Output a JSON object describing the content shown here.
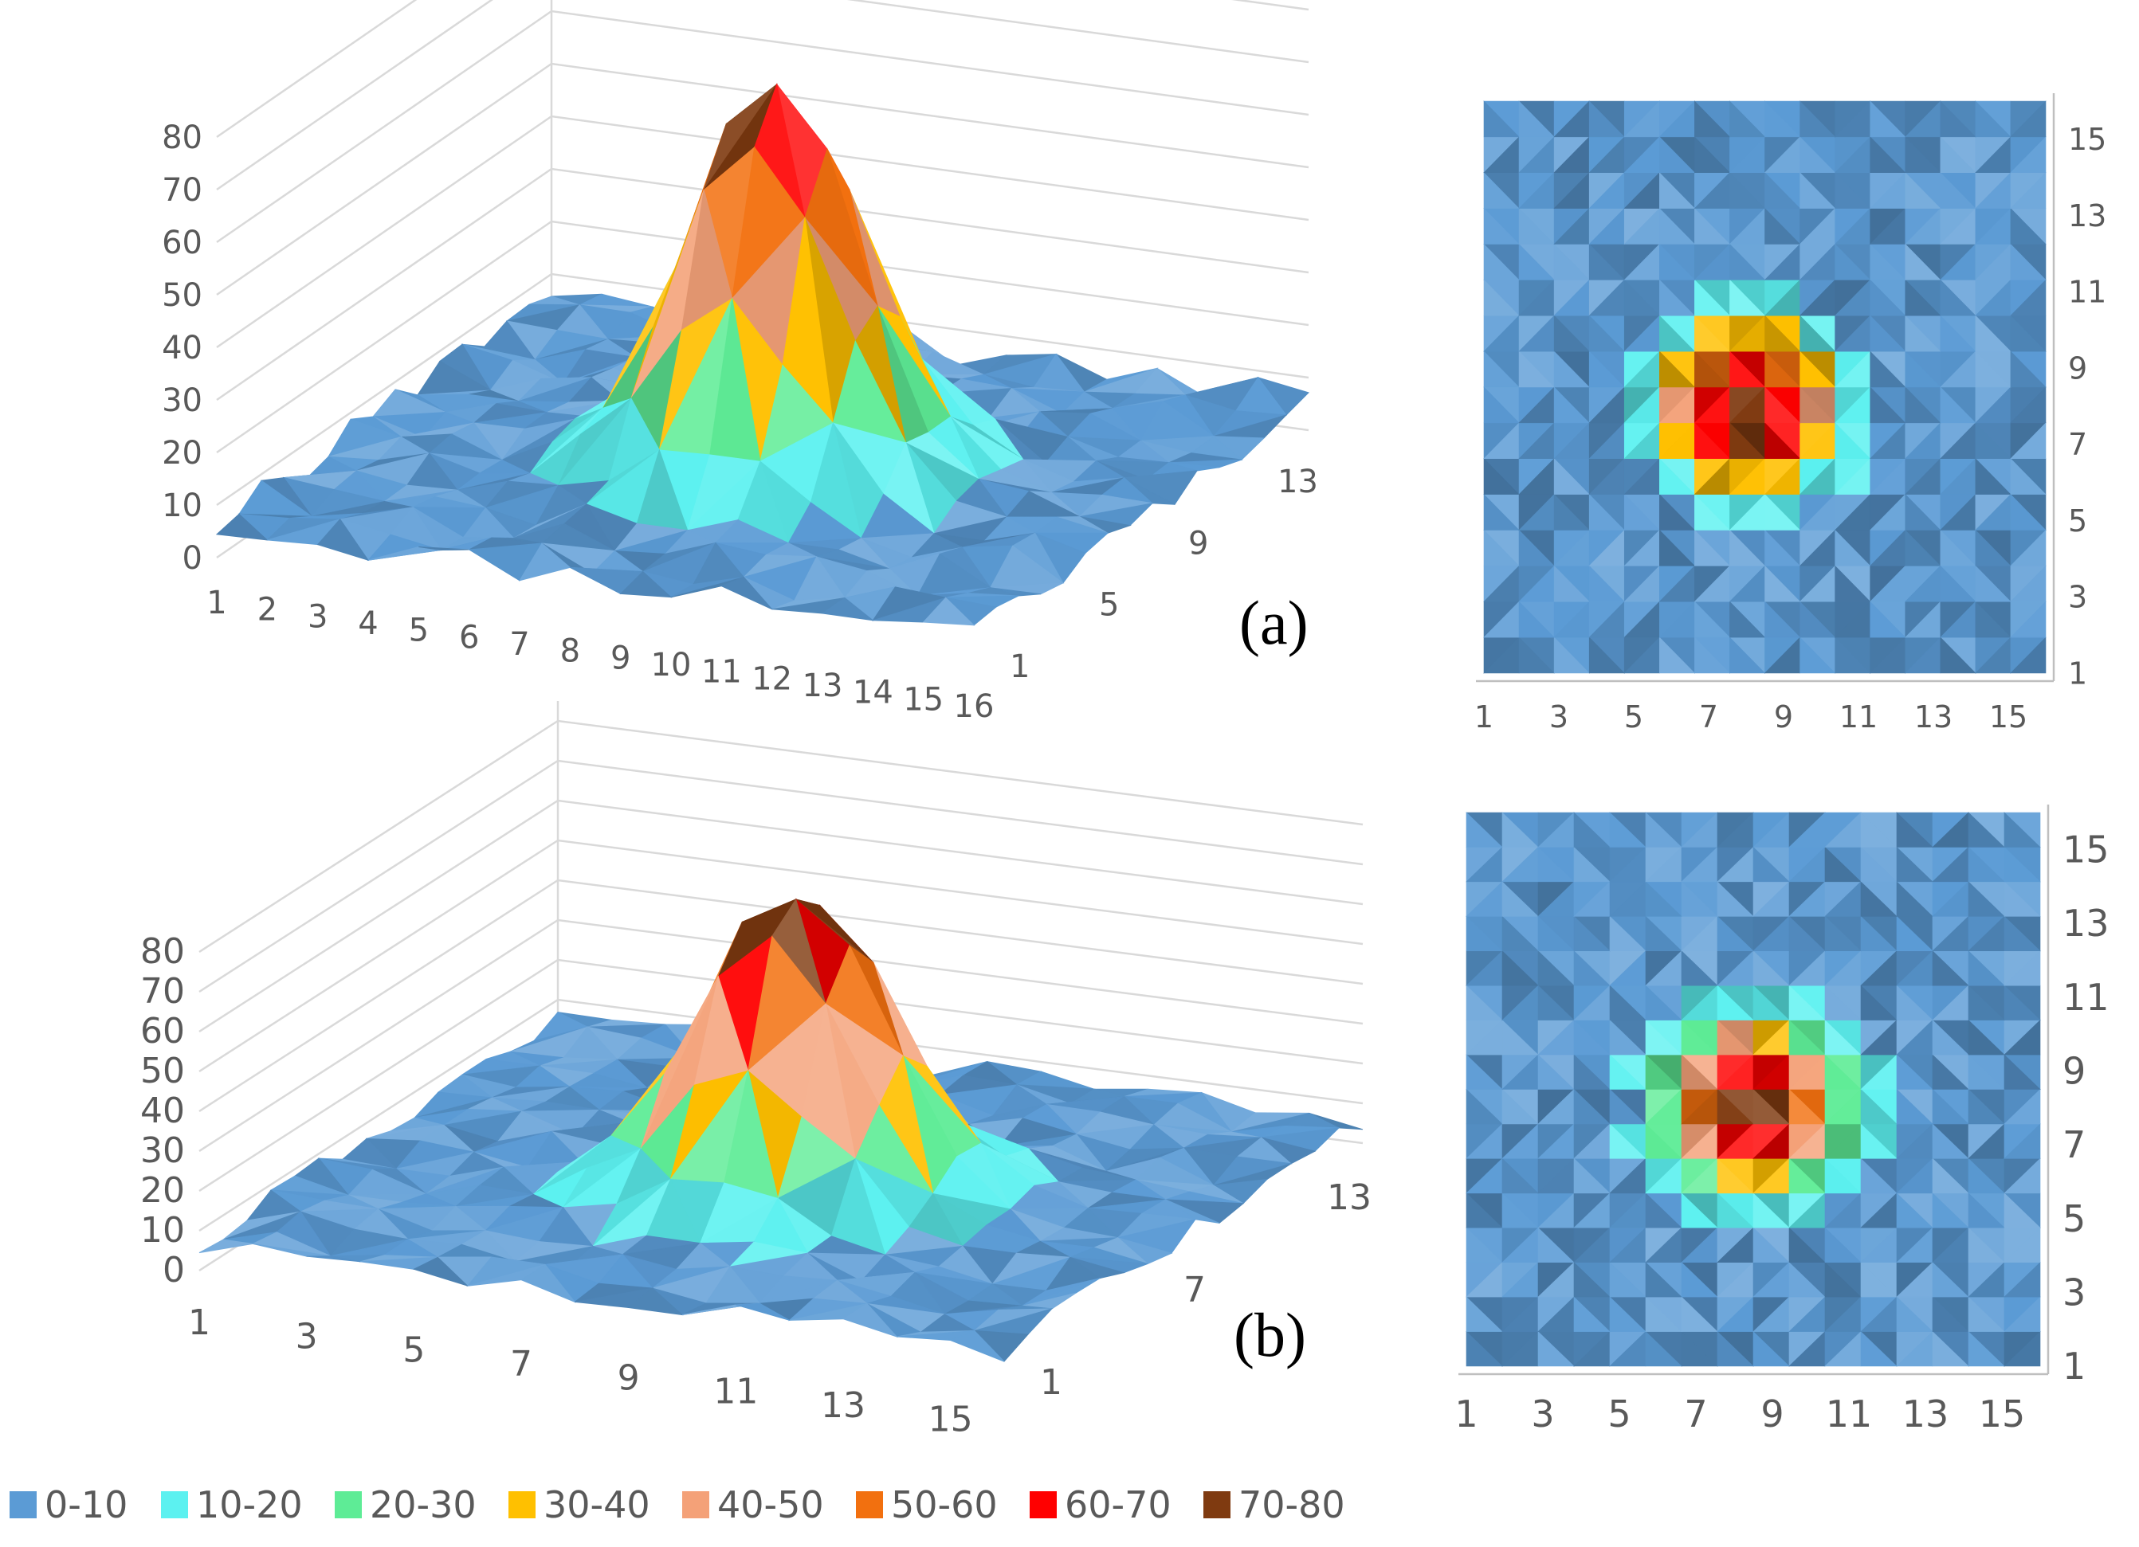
{
  "legend": {
    "items": [
      {
        "label": "0-10",
        "color": "#5B9BD5"
      },
      {
        "label": "10-20",
        "color": "#5CF1F0"
      },
      {
        "label": "20-30",
        "color": "#5EEC96"
      },
      {
        "label": "30-40",
        "color": "#FFC000"
      },
      {
        "label": "40-50",
        "color": "#F4A178"
      },
      {
        "label": "50-60",
        "color": "#F2700F"
      },
      {
        "label": "60-70",
        "color": "#FF0000"
      },
      {
        "label": "70-80",
        "color": "#7F3A10"
      }
    ]
  },
  "chart_data": [
    {
      "id": "a-surface",
      "type": "surface3d",
      "panel_label": "(a)",
      "z_ticks": [
        "0",
        "10",
        "20",
        "30",
        "40",
        "50",
        "60",
        "70",
        "80"
      ],
      "x_ticks": [
        "1",
        "2",
        "3",
        "4",
        "5",
        "6",
        "7",
        "8",
        "9",
        "10",
        "11",
        "12",
        "13",
        "14",
        "15",
        "16"
      ],
      "y_ticks": [
        "1",
        "5",
        "9",
        "13"
      ],
      "zlim": [
        0,
        80
      ],
      "peak": {
        "x": 9,
        "y": 8,
        "value": 80
      },
      "base_level": 3
    },
    {
      "id": "a-contour",
      "type": "heatmap",
      "x_ticks": [
        "1",
        "3",
        "5",
        "7",
        "9",
        "11",
        "13",
        "15"
      ],
      "y_ticks": [
        "1",
        "3",
        "5",
        "7",
        "9",
        "11",
        "13",
        "15"
      ],
      "grid": 16,
      "peak": {
        "x": 8,
        "y": 8,
        "value": 80
      }
    },
    {
      "id": "b-surface",
      "type": "surface3d",
      "panel_label": "(b)",
      "z_ticks": [
        "0",
        "10",
        "20",
        "30",
        "40",
        "50",
        "60",
        "70",
        "80"
      ],
      "x_ticks": [
        "1",
        "3",
        "5",
        "7",
        "9",
        "11",
        "13",
        "15"
      ],
      "y_ticks": [
        "1",
        "7",
        "13"
      ],
      "zlim": [
        0,
        80
      ],
      "peak": {
        "x": 9,
        "y": 8,
        "value": 80
      },
      "base_level": 3
    },
    {
      "id": "b-contour",
      "type": "heatmap",
      "x_ticks": [
        "1",
        "3",
        "5",
        "7",
        "9",
        "11",
        "13",
        "15"
      ],
      "y_ticks": [
        "1",
        "3",
        "5",
        "7",
        "9",
        "11",
        "13",
        "15"
      ],
      "grid": 16,
      "peak": {
        "x": 8.5,
        "y": 8,
        "value": 80
      }
    }
  ]
}
